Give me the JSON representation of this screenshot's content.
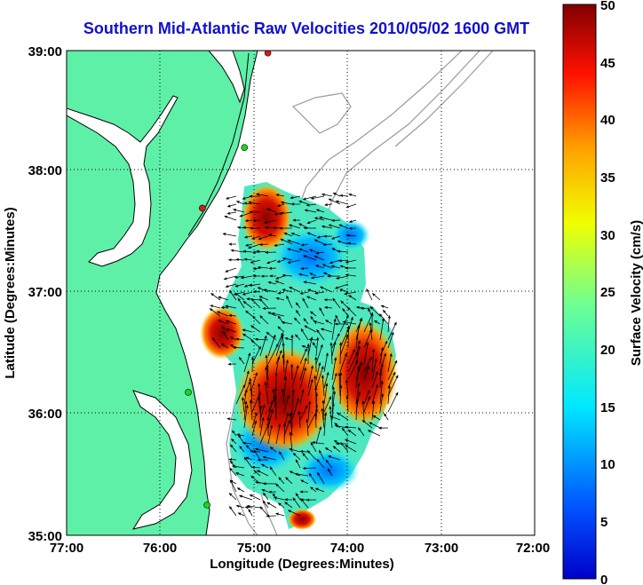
{
  "title": "Southern Mid-Atlantic Raw Velocities 2010/05/02 1600 GMT",
  "axes": {
    "xlabel": "Longitude (Degrees:Minutes)",
    "ylabel": "Latitude (Degrees:Minutes)",
    "x_ticks": [
      "77:00",
      "76:00",
      "75:00",
      "74:00",
      "73:00",
      "72:00"
    ],
    "y_ticks": [
      "39:00",
      "38:00",
      "37:00",
      "36:00",
      "35:00"
    ],
    "x_range_deg_west": [
      77,
      72
    ],
    "y_range_deg_north": [
      35,
      39
    ],
    "grid": "dotted"
  },
  "colorbar": {
    "label": "Surface Velocity (cm/s)",
    "ticks": [
      "50",
      "45",
      "40",
      "35",
      "30",
      "25",
      "20",
      "15",
      "10",
      "5",
      "0"
    ],
    "range": [
      0,
      50
    ],
    "colormap": "jet"
  },
  "colors": {
    "title": "#1010d0",
    "land": "#5ff0a8",
    "coast": "#000000",
    "bathymetry": "#9a9a9a",
    "station_green": "#18d818",
    "station_red": "#e01818"
  },
  "stations": [
    {
      "color": "red",
      "lon": 74.85,
      "lat": 38.98
    },
    {
      "color": "green",
      "lon": 75.1,
      "lat": 38.2
    },
    {
      "color": "red",
      "lon": 75.55,
      "lat": 37.7
    },
    {
      "color": "green",
      "lon": 75.7,
      "lat": 36.18
    },
    {
      "color": "green",
      "lon": 75.5,
      "lat": 35.25
    }
  ]
}
